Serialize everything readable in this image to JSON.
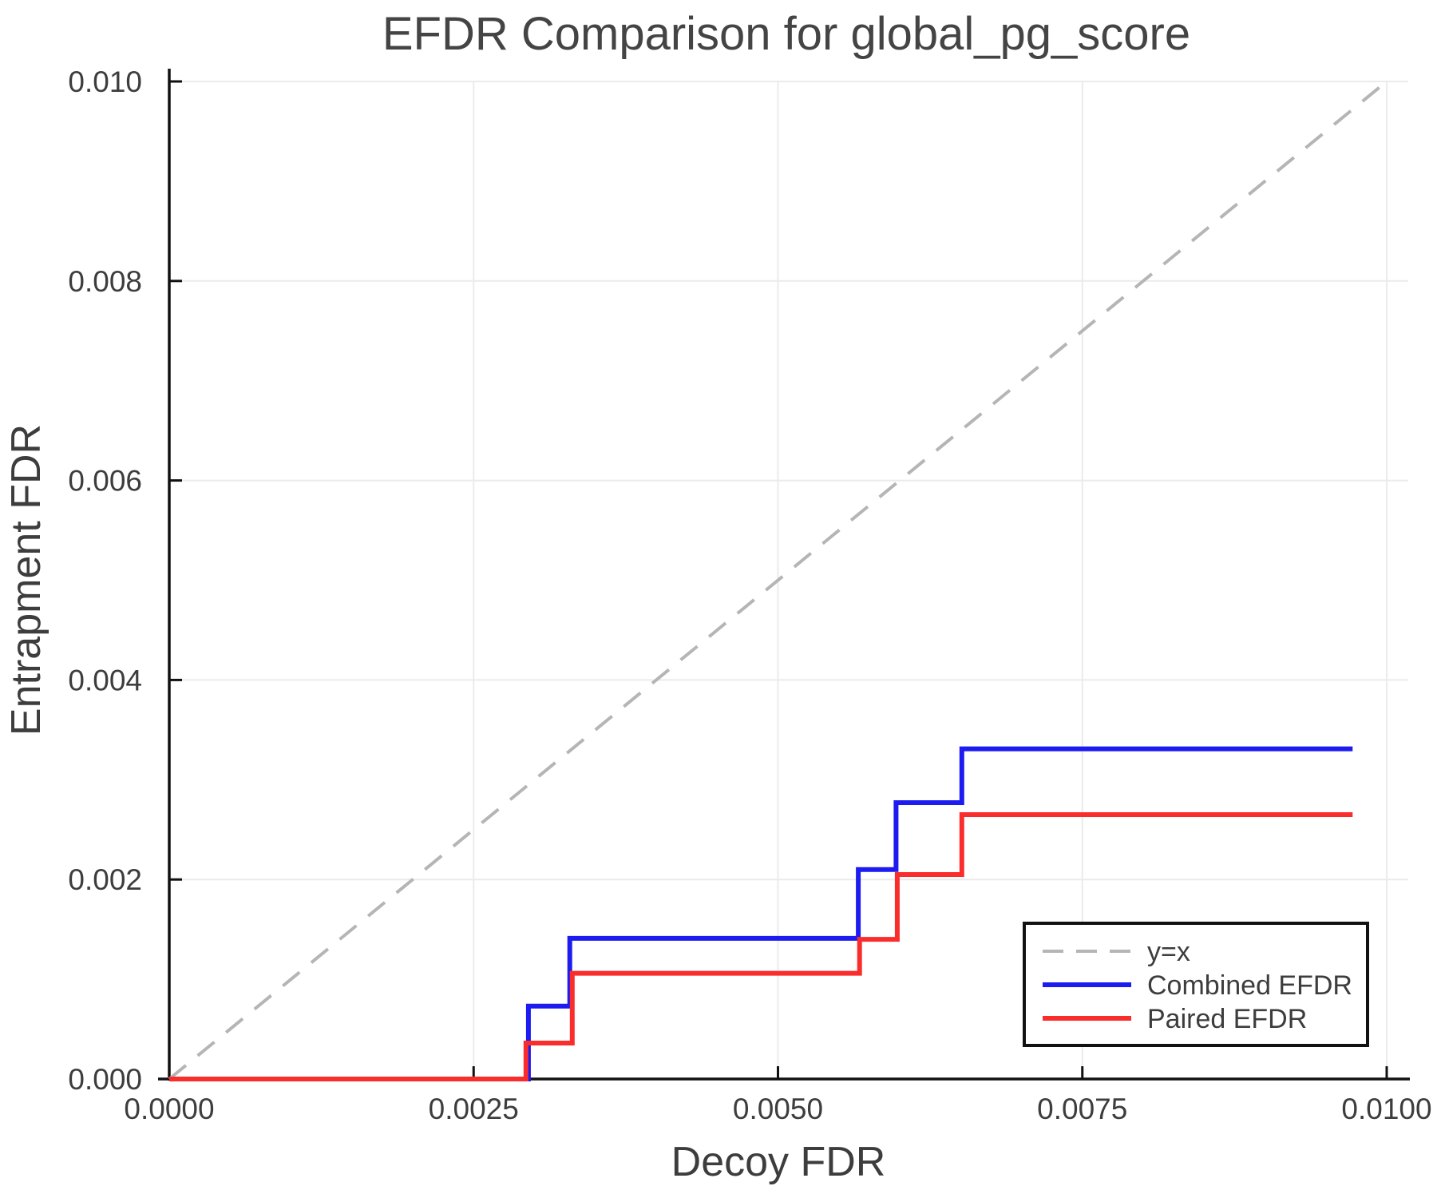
{
  "chart_data": {
    "type": "line",
    "subtype": "step",
    "title": "EFDR Comparison for global_pg_score",
    "xlabel": "Decoy FDR",
    "ylabel": "Entrapment FDR",
    "xlim": [
      0.0,
      0.01
    ],
    "ylim": [
      0.0,
      0.01
    ],
    "grid": true,
    "legend_position": "bottom-right",
    "xticks": {
      "values": [
        0.0,
        0.0025,
        0.005,
        0.0075,
        0.01
      ],
      "labels": [
        "0.0000",
        "0.0025",
        "0.0050",
        "0.0075",
        "0.0100"
      ]
    },
    "yticks": {
      "values": [
        0.0,
        0.002,
        0.004,
        0.006,
        0.008,
        0.01
      ],
      "labels": [
        "0.000",
        "0.002",
        "0.004",
        "0.006",
        "0.008",
        "0.010"
      ]
    },
    "series": [
      {
        "name": "y=x",
        "role": "reference-diagonal",
        "style": "dashed",
        "color": "#b5b5b5",
        "width": 4,
        "x": [
          0.0,
          0.01
        ],
        "y": [
          0.0,
          0.01
        ]
      },
      {
        "name": "Combined EFDR",
        "role": "data",
        "style": "solid",
        "color": "#1c1cf0",
        "width": 6,
        "x": [
          0.0,
          0.00295,
          0.00295,
          0.00329,
          0.00329,
          0.00566,
          0.00566,
          0.00597,
          0.00597,
          0.00651,
          0.00651,
          0.00972
        ],
        "y": [
          0.0,
          0.0,
          0.00073,
          0.00073,
          0.00141,
          0.00141,
          0.0021,
          0.0021,
          0.00277,
          0.00277,
          0.00331,
          0.00331
        ]
      },
      {
        "name": "Paired EFDR",
        "role": "data",
        "style": "solid",
        "color": "#fa2d2d",
        "width": 6,
        "x": [
          0.0,
          0.00293,
          0.00293,
          0.00331,
          0.00331,
          0.00567,
          0.00567,
          0.00598,
          0.00598,
          0.00651,
          0.00651,
          0.00972
        ],
        "y": [
          0.0,
          0.0,
          0.00036,
          0.00036,
          0.00106,
          0.00106,
          0.0014,
          0.0014,
          0.00205,
          0.00205,
          0.00265,
          0.00265
        ]
      }
    ]
  },
  "legend": {
    "items": [
      {
        "label": "y=x"
      },
      {
        "label": "Combined EFDR"
      },
      {
        "label": "Paired EFDR"
      }
    ]
  },
  "colors": {
    "text": "#3d3d3d",
    "title": "#444444",
    "spine": "#111111",
    "gridline": "#ebebeb",
    "background": "#ffffff",
    "legend_border": "#111111"
  }
}
